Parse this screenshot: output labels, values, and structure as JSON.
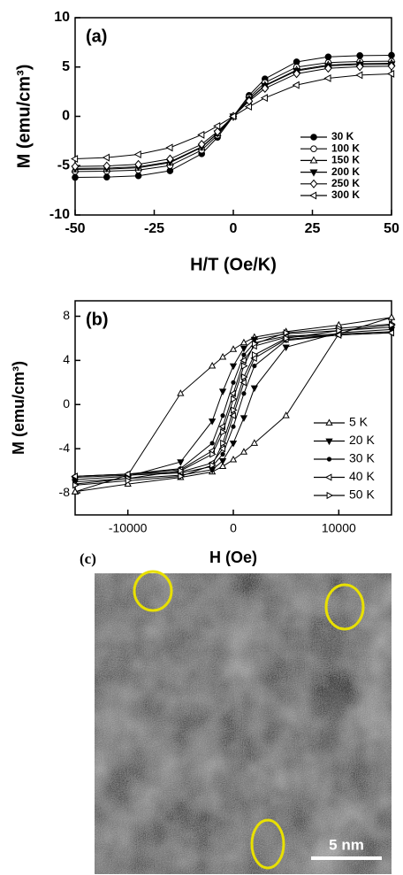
{
  "chart_data": [
    {
      "type": "line",
      "panel_label": "(a)",
      "x_label": "H/T (Oe/K)",
      "y_label": "M (emu/cm³)",
      "x": [
        -50,
        -40,
        -30,
        -20,
        -10,
        -5,
        0,
        5,
        10,
        20,
        30,
        40,
        50
      ],
      "xlim": [
        -50,
        50
      ],
      "xticks": [
        -50,
        -25,
        0,
        25,
        50
      ],
      "ylim": [
        -10,
        10
      ],
      "yticks": [
        -10,
        -5,
        0,
        5,
        10
      ],
      "legend": "lower right",
      "series": [
        {
          "name": "30 K",
          "color": "#000000",
          "marker": "circle-filled",
          "values": [
            -6.19,
            -6.16,
            -6.03,
            -5.52,
            -3.8,
            -2.13,
            0,
            2.13,
            3.8,
            5.52,
            6.03,
            6.16,
            6.19
          ]
        },
        {
          "name": "100 K",
          "color": "#000000",
          "marker": "circle-open",
          "values": [
            -5.59,
            -5.56,
            -5.45,
            -4.99,
            -3.43,
            -1.92,
            0,
            1.92,
            3.43,
            4.99,
            5.45,
            5.56,
            5.59
          ]
        },
        {
          "name": "150 K",
          "color": "#000000",
          "marker": "triangle-up-open",
          "values": [
            -5.38,
            -5.35,
            -5.21,
            -4.7,
            -3.15,
            -1.74,
            0,
            1.74,
            3.15,
            4.7,
            5.21,
            5.35,
            5.38
          ]
        },
        {
          "name": "200 K",
          "color": "#000000",
          "marker": "triangle-down-filled",
          "values": [
            -5.28,
            -5.25,
            -5.11,
            -4.61,
            -3.09,
            -1.71,
            0,
            1.71,
            3.09,
            4.61,
            5.11,
            5.25,
            5.28
          ]
        },
        {
          "name": "250 K",
          "color": "#000000",
          "marker": "diamond-open",
          "values": [
            -5.08,
            -5.03,
            -4.87,
            -4.32,
            -2.83,
            -1.55,
            0,
            1.55,
            2.83,
            4.32,
            4.87,
            5.03,
            5.08
          ]
        },
        {
          "name": "300 K",
          "color": "#000000",
          "marker": "triangle-left-open",
          "values": [
            -4.31,
            -4.18,
            -3.86,
            -3.17,
            -1.87,
            -0.98,
            0,
            0.98,
            1.87,
            3.17,
            3.86,
            4.18,
            4.31
          ]
        }
      ]
    },
    {
      "type": "line",
      "panel_label": "(b)",
      "x_label": "H (Oe)",
      "y_label": "M (emu/cm³)",
      "xlim": [
        -15000,
        15000
      ],
      "xticks": [
        -10000,
        0,
        10000
      ],
      "ylim": [
        -10,
        9.4
      ],
      "yticks": [
        -8,
        -4,
        0,
        4,
        8
      ],
      "legend": "lower right",
      "series": [
        {
          "name": "5 K",
          "color": "#000000",
          "marker": "triangle-up-open",
          "x": [
            15000,
            10000,
            5000,
            2000,
            1000,
            0,
            -1000,
            -2000,
            -5000,
            -10000,
            -15000,
            -15000,
            -10000,
            -5000,
            -2000,
            -1000,
            0,
            1000,
            2000,
            5000,
            10000,
            15000
          ],
          "values": [
            7.9,
            7.2,
            6.6,
            6.1,
            5.6,
            5.0,
            4.3,
            3.5,
            1.0,
            -6.4,
            -7.9,
            -7.9,
            -7.2,
            -6.6,
            -6.1,
            -5.6,
            -5.0,
            -4.3,
            -3.5,
            -1.0,
            6.4,
            7.9
          ]
        },
        {
          "name": "20 K",
          "color": "#000000",
          "marker": "triangle-down-filled",
          "x": [
            15000,
            10000,
            5000,
            2000,
            1000,
            0,
            -1000,
            -2000,
            -5000,
            -10000,
            -15000,
            -15000,
            -10000,
            -5000,
            -2000,
            -1000,
            0,
            1000,
            2000,
            5000,
            10000,
            15000
          ],
          "values": [
            7.0,
            6.7,
            6.4,
            5.9,
            5.1,
            3.5,
            1.2,
            -1.5,
            -5.2,
            -6.5,
            -6.8,
            -7.0,
            -6.7,
            -6.4,
            -5.9,
            -5.1,
            -3.5,
            -1.2,
            1.5,
            5.2,
            6.5,
            6.8
          ]
        },
        {
          "name": "30 K",
          "color": "#000000",
          "marker": "circle-small-filled",
          "x": [
            15000,
            10000,
            5000,
            2000,
            1000,
            0,
            -1000,
            -2000,
            -5000,
            -10000,
            -15000,
            -15000,
            -10000,
            -5000,
            -2000,
            -1000,
            0,
            1000,
            2000,
            5000,
            10000,
            15000
          ],
          "values": [
            6.6,
            6.4,
            6.2,
            5.6,
            4.5,
            2.0,
            -1.0,
            -3.5,
            -5.8,
            -6.3,
            -6.5,
            -6.6,
            -6.4,
            -6.2,
            -5.6,
            -4.5,
            -2.0,
            1.0,
            3.5,
            5.8,
            6.3,
            6.5
          ]
        },
        {
          "name": "40 K",
          "color": "#000000",
          "marker": "triangle-left-open",
          "x": [
            15000,
            10000,
            5000,
            2000,
            1000,
            0,
            -1000,
            -2000,
            -5000,
            -10000,
            -15000,
            -15000,
            -10000,
            -5000,
            -2000,
            -1000,
            0,
            1000,
            2000,
            5000,
            10000,
            15000
          ],
          "values": [
            6.5,
            6.3,
            6.1,
            5.3,
            4.0,
            1.0,
            -2.0,
            -4.2,
            -5.9,
            -6.3,
            -6.5,
            -6.5,
            -6.3,
            -6.1,
            -5.3,
            -4.0,
            -1.0,
            2.0,
            4.2,
            5.9,
            6.3,
            6.5
          ]
        },
        {
          "name": "50 K",
          "color": "#000000",
          "marker": "triangle-right-open",
          "x": [
            15000,
            10000,
            5000,
            2000,
            1000,
            0,
            -1000,
            -2000,
            -5000,
            -10000,
            -15000,
            -15000,
            -10000,
            -5000,
            -2000,
            -1000,
            0,
            1000,
            2000,
            5000,
            10000,
            15000
          ],
          "values": [
            7.3,
            6.9,
            6.5,
            5.5,
            3.5,
            0.5,
            -2.5,
            -4.5,
            -6.0,
            -6.7,
            -7.2,
            -7.3,
            -6.9,
            -6.5,
            -5.5,
            -3.5,
            -0.5,
            2.5,
            4.5,
            6.0,
            6.7,
            7.2
          ]
        }
      ]
    }
  ],
  "panel_c": {
    "label": "(c)",
    "scale_bar": "5 nm"
  }
}
